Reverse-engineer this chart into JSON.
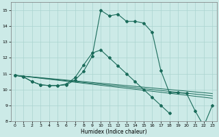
{
  "xlabel": "Humidex (Indice chaleur)",
  "bg_color": "#cceae7",
  "grid_color": "#aad4d0",
  "line_color": "#1a6b5a",
  "xlim": [
    -0.5,
    23.5
  ],
  "ylim": [
    8,
    15.5
  ],
  "xticks": [
    0,
    1,
    2,
    3,
    4,
    5,
    6,
    7,
    8,
    9,
    10,
    11,
    12,
    13,
    14,
    15,
    16,
    17,
    18,
    19,
    20,
    21,
    22,
    23
  ],
  "yticks": [
    8,
    9,
    10,
    11,
    12,
    13,
    14,
    15
  ],
  "main_series": {
    "x": [
      0,
      1,
      2,
      3,
      4,
      5,
      6,
      7,
      8,
      9,
      10,
      11,
      12,
      13,
      14,
      15,
      16,
      17,
      18,
      19,
      20,
      21,
      22,
      23
    ],
    "y": [
      10.9,
      10.8,
      10.5,
      10.3,
      10.25,
      10.25,
      10.3,
      10.6,
      11.15,
      12.1,
      15.0,
      14.65,
      14.75,
      14.3,
      14.3,
      14.2,
      13.6,
      11.2,
      9.8,
      9.8,
      9.75,
      8.65,
      7.7,
      9.0
    ]
  },
  "mid_series": {
    "x": [
      0,
      1,
      2,
      3,
      4,
      5,
      6,
      7,
      8,
      9,
      10,
      11,
      12,
      13,
      14,
      15,
      16,
      17,
      18
    ],
    "y": [
      10.9,
      10.8,
      10.5,
      10.3,
      10.25,
      10.25,
      10.35,
      10.75,
      11.55,
      12.3,
      12.5,
      12.0,
      11.5,
      11.0,
      10.5,
      10.0,
      9.5,
      9.0,
      8.5
    ]
  },
  "flat1": {
    "x": [
      0,
      23
    ],
    "y": [
      10.9,
      9.75
    ]
  },
  "flat2": {
    "x": [
      0,
      23
    ],
    "y": [
      10.9,
      9.6
    ]
  },
  "flat3": {
    "x": [
      0,
      23
    ],
    "y": [
      10.9,
      9.45
    ]
  }
}
